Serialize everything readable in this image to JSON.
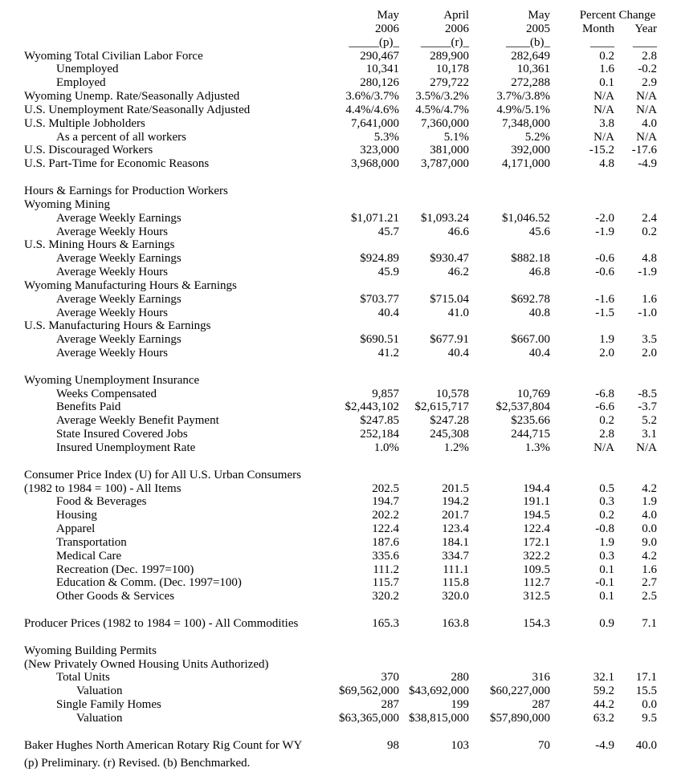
{
  "colors": {
    "text": "#000000",
    "background": "#ffffff"
  },
  "header": {
    "col1": [
      "May",
      "2006",
      "_____(p)_"
    ],
    "col2": [
      "April",
      "2006",
      "_____(r)_"
    ],
    "col3": [
      "May",
      "2005",
      "____(b)_"
    ],
    "percent_change": "Percent Change",
    "month": "Month",
    "year": "Year",
    "month_rule": "____",
    "year_rule": "____"
  },
  "rows": [
    {
      "label": "Wyoming Total Civilian Labor Force",
      "indent": 0,
      "values": [
        "290,467",
        "289,900",
        "282,649",
        "0.2",
        "2.8"
      ]
    },
    {
      "label": "Unemployed",
      "indent": 1,
      "values": [
        "10,341",
        "10,178",
        "10,361",
        "1.6",
        "-0.2"
      ]
    },
    {
      "label": "Employed",
      "indent": 1,
      "values": [
        "280,126",
        "279,722",
        "272,288",
        "0.1",
        "2.9"
      ]
    },
    {
      "label": "Wyoming Unemp. Rate/Seasonally Adjusted",
      "indent": 0,
      "values": [
        "3.6%/3.7%",
        "3.5%/3.2%",
        "3.7%/3.8%",
        "N/A",
        "N/A"
      ]
    },
    {
      "label": "U.S. Unemployment Rate/Seasonally Adjusted",
      "indent": 0,
      "values": [
        "4.4%/4.6%",
        "4.5%/4.7%",
        "4.9%/5.1%",
        "N/A",
        "N/A"
      ]
    },
    {
      "label": "U.S. Multiple Jobholders",
      "indent": 0,
      "values": [
        "7,641,000",
        "7,360,000",
        "7,348,000",
        "3.8",
        "4.0"
      ]
    },
    {
      "label": "As a percent of all workers",
      "indent": 1,
      "values": [
        "5.3%",
        "5.1%",
        "5.2%",
        "N/A",
        "N/A"
      ]
    },
    {
      "label": "U.S. Discouraged Workers",
      "indent": 0,
      "values": [
        "323,000",
        "381,000",
        "392,000",
        "-15.2",
        "-17.6"
      ]
    },
    {
      "label": "U.S. Part-Time for Economic Reasons",
      "indent": 0,
      "values": [
        "3,968,000",
        "3,787,000",
        "4,171,000",
        "4.8",
        "-4.9"
      ]
    },
    {
      "blank": true
    },
    {
      "label": "Hours & Earnings for Production Workers",
      "indent": 0
    },
    {
      "label": "Wyoming Mining",
      "indent": 0
    },
    {
      "label": "Average Weekly Earnings",
      "indent": 1,
      "values": [
        "$1,071.21",
        "$1,093.24",
        "$1,046.52",
        "-2.0",
        "2.4"
      ]
    },
    {
      "label": "Average Weekly Hours",
      "indent": 1,
      "values": [
        "45.7",
        "46.6",
        "45.6",
        "-1.9",
        "0.2"
      ]
    },
    {
      "label": "U.S. Mining Hours & Earnings",
      "indent": 0
    },
    {
      "label": "Average Weekly Earnings",
      "indent": 1,
      "values": [
        "$924.89",
        "$930.47",
        "$882.18",
        "-0.6",
        "4.8"
      ]
    },
    {
      "label": "Average Weekly Hours",
      "indent": 1,
      "values": [
        "45.9",
        "46.2",
        "46.8",
        "-0.6",
        "-1.9"
      ]
    },
    {
      "label": "Wyoming Manufacturing Hours & Earnings",
      "indent": 0
    },
    {
      "label": "Average Weekly Earnings",
      "indent": 1,
      "values": [
        "$703.77",
        "$715.04",
        "$692.78",
        "-1.6",
        "1.6"
      ]
    },
    {
      "label": "Average Weekly Hours",
      "indent": 1,
      "values": [
        "40.4",
        "41.0",
        "40.8",
        "-1.5",
        "-1.0"
      ]
    },
    {
      "label": "U.S. Manufacturing Hours & Earnings",
      "indent": 0
    },
    {
      "label": "Average Weekly Earnings",
      "indent": 1,
      "values": [
        "$690.51",
        "$677.91",
        "$667.00",
        "1.9",
        "3.5"
      ]
    },
    {
      "label": "Average Weekly Hours",
      "indent": 1,
      "values": [
        "41.2",
        "40.4",
        "40.4",
        "2.0",
        "2.0"
      ]
    },
    {
      "blank": true
    },
    {
      "label": "Wyoming Unemployment Insurance",
      "indent": 0
    },
    {
      "label": "Weeks Compensated",
      "indent": 1,
      "values": [
        "9,857",
        "10,578",
        "10,769",
        "-6.8",
        "-8.5"
      ]
    },
    {
      "label": "Benefits Paid",
      "indent": 1,
      "values": [
        "$2,443,102",
        "$2,615,717",
        "$2,537,804",
        "-6.6",
        "-3.7"
      ]
    },
    {
      "label": "Average Weekly Benefit Payment",
      "indent": 1,
      "values": [
        "$247.85",
        "$247.28",
        "$235.66",
        "0.2",
        "5.2"
      ]
    },
    {
      "label": "State Insured Covered Jobs",
      "indent": 1,
      "values": [
        "252,184",
        "245,308",
        "244,715",
        "2.8",
        "3.1"
      ]
    },
    {
      "label": "Insured Unemployment Rate",
      "indent": 1,
      "values": [
        "1.0%",
        "1.2%",
        "1.3%",
        "N/A",
        "N/A"
      ]
    },
    {
      "blank": true
    },
    {
      "label": "Consumer Price Index (U) for All U.S. Urban Consumers",
      "indent": 0
    },
    {
      "label": "(1982 to 1984 = 100) - All Items",
      "indent": 0,
      "values": [
        "202.5",
        "201.5",
        "194.4",
        "0.5",
        "4.2"
      ]
    },
    {
      "label": "Food & Beverages",
      "indent": 1,
      "values": [
        "194.7",
        "194.2",
        "191.1",
        "0.3",
        "1.9"
      ]
    },
    {
      "label": "Housing",
      "indent": 1,
      "values": [
        "202.2",
        "201.7",
        "194.5",
        "0.2",
        "4.0"
      ]
    },
    {
      "label": "Apparel",
      "indent": 1,
      "values": [
        "122.4",
        "123.4",
        "122.4",
        "-0.8",
        "0.0"
      ]
    },
    {
      "label": "Transportation",
      "indent": 1,
      "values": [
        "187.6",
        "184.1",
        "172.1",
        "1.9",
        "9.0"
      ]
    },
    {
      "label": "Medical Care",
      "indent": 1,
      "values": [
        "335.6",
        "334.7",
        "322.2",
        "0.3",
        "4.2"
      ]
    },
    {
      "label": "Recreation (Dec. 1997=100)",
      "indent": 1,
      "values": [
        "111.2",
        "111.1",
        "109.5",
        "0.1",
        "1.6"
      ]
    },
    {
      "label": "Education & Comm. (Dec. 1997=100)",
      "indent": 1,
      "values": [
        "115.7",
        "115.8",
        "112.7",
        "-0.1",
        "2.7"
      ]
    },
    {
      "label": "Other Goods & Services",
      "indent": 1,
      "values": [
        "320.2",
        "320.0",
        "312.5",
        "0.1",
        "2.5"
      ]
    },
    {
      "blank": true
    },
    {
      "label": "Producer Prices (1982 to 1984 = 100) - All Commodities",
      "indent": 0,
      "values": [
        "165.3",
        "163.8",
        "154.3",
        "0.9",
        "7.1"
      ]
    },
    {
      "blank": true
    },
    {
      "label": "Wyoming Building Permits",
      "indent": 0
    },
    {
      "label": "(New Privately Owned Housing Units Authorized)",
      "indent": 0
    },
    {
      "label": "Total Units",
      "indent": 1,
      "values": [
        "370",
        "280",
        "316",
        "32.1",
        "17.1"
      ]
    },
    {
      "label": "Valuation",
      "indent": 2,
      "values": [
        "$69,562,000",
        "$43,692,000",
        "$60,227,000",
        "59.2",
        "15.5"
      ]
    },
    {
      "label": "Single Family Homes",
      "indent": 1,
      "values": [
        "287",
        "199",
        "287",
        "44.2",
        "0.0"
      ]
    },
    {
      "label": "Valuation",
      "indent": 2,
      "values": [
        "$63,365,000",
        "$38,815,000",
        "$57,890,000",
        "63.2",
        "9.5"
      ]
    },
    {
      "blank": true
    },
    {
      "label": "Baker Hughes North American Rotary Rig Count for WY",
      "indent": 0,
      "values": [
        "98",
        "103",
        "70",
        "-4.9",
        "40.0"
      ]
    }
  ],
  "footnote": "(p) Preliminary. (r) Revised. (b) Benchmarked."
}
